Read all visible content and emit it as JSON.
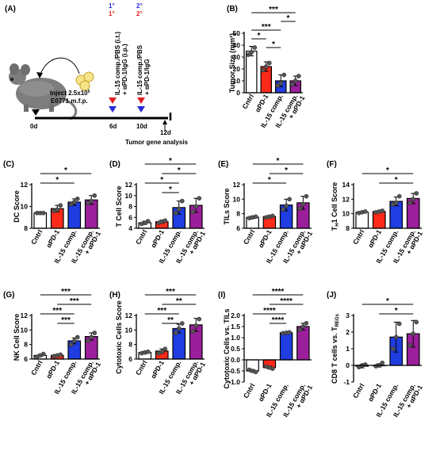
{
  "schematic": {
    "label": "(A)",
    "inject_text_1": "Inject 2.5x10",
    "inject_sup": "5",
    "inject_text_2": "E0771 m.f.p.",
    "day0": "0d",
    "day6": "6d",
    "day10": "10d",
    "day12": "12d",
    "analysis": "Tumor gene analysis",
    "dose6_line1": "IL-15 comp./PBS (i.t.)",
    "dose6_line2": "+ αPD-1/IgG (i.p.)",
    "dose10_line1": "IL-15 comp./PBS",
    "dose10_line2": "+ αPD-1/IgG",
    "primary_blue": "1°",
    "primary_red": "1°",
    "secondary_blue": "2°",
    "secondary_red": "2°",
    "colors": {
      "blue": "#2b2bd6",
      "red": "#e02020"
    }
  },
  "group_labels": [
    "Cntrl",
    "αPD-1",
    "IL-15 comp.",
    "IL-15 comp.",
    "+ αPD-1"
  ],
  "colors": {
    "cntrl": "#ffffff",
    "apd1": "#ff2a1a",
    "il15": "#1f3de0",
    "combo": "#9b1f9b",
    "edge": "#000000"
  },
  "chart_data": [
    {
      "id": "B",
      "panel": "(B)",
      "type": "bar",
      "ylabel": "Tumor Size (mm²)",
      "ylim": [
        0,
        50
      ],
      "ticks": [
        0,
        10,
        20,
        30,
        40,
        50
      ],
      "values": [
        35,
        22,
        10,
        10
      ],
      "errors": [
        4,
        4,
        5,
        4
      ],
      "points": [
        [
          32,
          34,
          38
        ],
        [
          19,
          22,
          25
        ],
        [
          6,
          8,
          15
        ],
        [
          7,
          10,
          14
        ]
      ],
      "sig": [
        {
          "a": 0,
          "b": 3,
          "label": "***"
        },
        {
          "a": 2,
          "b": 3,
          "label": "*"
        },
        {
          "a": 0,
          "b": 2,
          "label": "***"
        },
        {
          "a": 0,
          "b": 1,
          "label": "*"
        },
        {
          "a": 1,
          "b": 2,
          "label": "*"
        }
      ]
    },
    {
      "id": "C",
      "panel": "(C)",
      "type": "bar",
      "ylabel": "DC Score",
      "ylim": [
        8,
        12
      ],
      "ticks": [
        8,
        10,
        12
      ],
      "values": [
        9.4,
        9.8,
        10.4,
        10.6
      ],
      "errors": [
        0.05,
        0.3,
        0.3,
        0.4
      ],
      "points": [
        [
          9.4,
          9.4,
          9.4
        ],
        [
          9.6,
          9.7,
          10.1
        ],
        [
          10.2,
          10.4,
          10.7
        ],
        [
          10.3,
          10.5,
          11.0
        ]
      ],
      "sig": [
        {
          "a": 0,
          "b": 3,
          "label": "*"
        },
        {
          "a": 0,
          "b": 2,
          "label": "*"
        }
      ]
    },
    {
      "id": "D",
      "panel": "(D)",
      "type": "bar",
      "ylabel": "T Cell Score",
      "ylim": [
        4,
        12
      ],
      "ticks": [
        4,
        6,
        8,
        10,
        12
      ],
      "values": [
        5.0,
        5.2,
        7.8,
        8.2
      ],
      "errors": [
        0.3,
        0.3,
        1.2,
        1.3
      ],
      "points": [
        [
          4.8,
          5.0,
          5.3
        ],
        [
          5.0,
          5.2,
          5.4
        ],
        [
          6.8,
          7.5,
          9.0
        ],
        [
          7.0,
          8.0,
          9.5
        ]
      ],
      "sig": [
        {
          "a": 0,
          "b": 3,
          "label": "*"
        },
        {
          "a": 1,
          "b": 3,
          "label": "*"
        },
        {
          "a": 0,
          "b": 2,
          "label": "*"
        },
        {
          "a": 1,
          "b": 2,
          "label": "*"
        }
      ]
    },
    {
      "id": "E",
      "panel": "(E)",
      "type": "bar",
      "ylabel": "TILs Score",
      "ylim": [
        6,
        12
      ],
      "ticks": [
        6,
        8,
        10,
        12
      ],
      "values": [
        7.5,
        7.6,
        9.2,
        9.5
      ],
      "errors": [
        0.15,
        0.15,
        0.8,
        0.9
      ],
      "points": [
        [
          7.4,
          7.5,
          7.6
        ],
        [
          7.5,
          7.6,
          7.7
        ],
        [
          8.6,
          9.1,
          10.0
        ],
        [
          8.7,
          9.3,
          10.4
        ]
      ],
      "sig": [
        {
          "a": 0,
          "b": 3,
          "label": "*"
        },
        {
          "a": 1,
          "b": 3,
          "label": "*"
        },
        {
          "a": 0,
          "b": 2,
          "label": "*"
        }
      ]
    },
    {
      "id": "F",
      "panel": "(F)",
      "type": "bar",
      "ylabel": "T",
      "ylabel_sub": "H",
      "ylabel_rest": "1 Cell Score",
      "ylim": [
        8,
        14
      ],
      "ticks": [
        8,
        10,
        12,
        14
      ],
      "values": [
        10.2,
        10.3,
        11.7,
        12.1
      ],
      "errors": [
        0.1,
        0.1,
        0.6,
        0.7
      ],
      "points": [
        [
          10.1,
          10.2,
          10.3
        ],
        [
          10.2,
          10.3,
          10.4
        ],
        [
          11.3,
          11.5,
          12.4
        ],
        [
          11.5,
          12.0,
          12.8
        ]
      ],
      "sig": [
        {
          "a": 0,
          "b": 3,
          "label": "*"
        },
        {
          "a": 1,
          "b": 3,
          "label": "*"
        }
      ]
    },
    {
      "id": "G",
      "panel": "(G)",
      "type": "bar",
      "ylabel": "NK Cell Score",
      "ylim": [
        6,
        12
      ],
      "ticks": [
        6,
        8,
        10,
        12
      ],
      "values": [
        6.5,
        6.5,
        8.5,
        9.1
      ],
      "errors": [
        0.15,
        0.1,
        0.4,
        0.5
      ],
      "points": [
        [
          6.3,
          6.5,
          6.7
        ],
        [
          6.4,
          6.5,
          6.6
        ],
        [
          8.0,
          8.5,
          9.0
        ],
        [
          8.5,
          9.0,
          9.6
        ]
      ],
      "sig": [
        {
          "a": 0,
          "b": 3,
          "label": "***"
        },
        {
          "a": 1,
          "b": 3,
          "label": "***"
        },
        {
          "a": 0,
          "b": 2,
          "label": "***"
        },
        {
          "a": 1,
          "b": 2,
          "label": "***"
        }
      ]
    },
    {
      "id": "H",
      "panel": "(H)",
      "type": "bar",
      "ylabel": "Cytotoxic Cells Score",
      "ylim": [
        6,
        12
      ],
      "ticks": [
        6,
        8,
        10,
        12
      ],
      "values": [
        6.9,
        7.1,
        10.2,
        10.7
      ],
      "errors": [
        0.15,
        0.3,
        0.6,
        0.9
      ],
      "points": [
        [
          6.8,
          6.9,
          7.0
        ],
        [
          6.8,
          7.0,
          7.4
        ],
        [
          9.6,
          10.2,
          10.9
        ],
        [
          9.8,
          10.6,
          11.5
        ]
      ],
      "sig": [
        {
          "a": 0,
          "b": 3,
          "label": "***"
        },
        {
          "a": 1,
          "b": 3,
          "label": "**"
        },
        {
          "a": 0,
          "b": 2,
          "label": "***"
        },
        {
          "a": 1,
          "b": 2,
          "label": "**"
        }
      ]
    },
    {
      "id": "I",
      "panel": "(I)",
      "type": "bar",
      "ylabel": "Cytotoxic Cells vs. TILs",
      "ylim": [
        -1.0,
        2.0
      ],
      "ticks": [
        -1.0,
        -0.5,
        0.0,
        0.5,
        1.0,
        1.5,
        2.0
      ],
      "values": [
        -0.5,
        -0.35,
        1.22,
        1.5
      ],
      "errors": [
        0.05,
        0.05,
        0.02,
        0.15
      ],
      "points": [
        [
          -0.45,
          -0.5,
          -0.55
        ],
        [
          -0.3,
          -0.35,
          -0.4
        ],
        [
          1.2,
          1.22,
          1.24
        ],
        [
          1.35,
          1.5,
          1.65
        ]
      ],
      "sig": [
        {
          "a": 0,
          "b": 3,
          "label": "****"
        },
        {
          "a": 1,
          "b": 3,
          "label": "****"
        },
        {
          "a": 0,
          "b": 2,
          "label": "****"
        },
        {
          "a": 1,
          "b": 2,
          "label": "****"
        }
      ]
    },
    {
      "id": "J",
      "panel": "(J)",
      "type": "bar",
      "ylabel": "CD8 T cells vs. T",
      "ylabel_sub": "REGs",
      "ylim": [
        -1,
        3
      ],
      "ticks": [
        -1,
        0,
        1,
        2,
        3
      ],
      "values": [
        -0.05,
        0.0,
        1.7,
        1.9
      ],
      "errors": [
        0.1,
        0.1,
        0.9,
        0.8
      ],
      "points": [
        [
          -0.1,
          0.0,
          0.05
        ],
        [
          -0.05,
          0.0,
          0.15
        ],
        [
          1.0,
          1.7,
          2.5
        ],
        [
          1.2,
          1.9,
          2.6
        ]
      ],
      "sig": [
        {
          "a": 0,
          "b": 3,
          "label": "*"
        },
        {
          "a": 1,
          "b": 3,
          "label": "*"
        }
      ]
    }
  ]
}
